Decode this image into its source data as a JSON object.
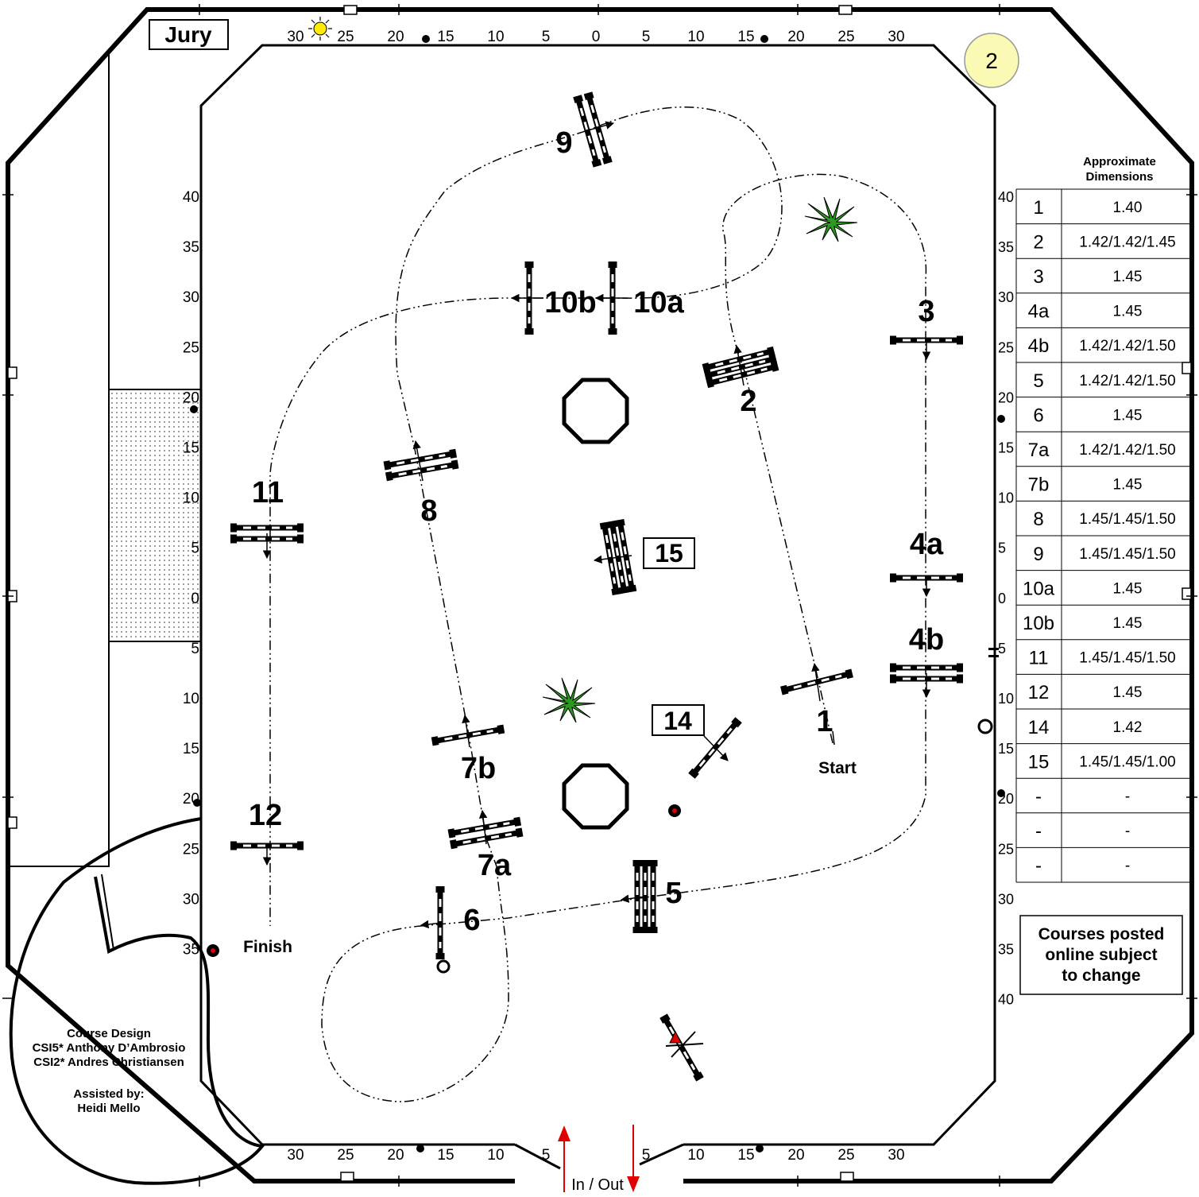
{
  "arena": {
    "round_number": "2",
    "jury_label": "Jury",
    "top_ruler": [
      "30",
      "25",
      "20",
      "15",
      "10",
      "5",
      "0",
      "5",
      "10",
      "15",
      "20",
      "25",
      "30"
    ],
    "bottom_ruler_left": [
      "30",
      "25",
      "20",
      "15",
      "10",
      "5"
    ],
    "bottom_ruler_right": [
      "5",
      "10",
      "15",
      "20",
      "25",
      "30"
    ],
    "left_ruler": [
      "40",
      "35",
      "30",
      "25",
      "20",
      "15",
      "10",
      "5",
      "0",
      "5",
      "10",
      "15",
      "20",
      "25",
      "30",
      "35"
    ],
    "right_ruler": [
      "40",
      "35",
      "30",
      "25",
      "20",
      "15",
      "10",
      "5",
      "0",
      "5",
      "10",
      "15",
      "20",
      "25",
      "30",
      "35",
      "40"
    ],
    "gate_label": "In / Out",
    "start_label": "Start",
    "finish_label": "Finish"
  },
  "credits": {
    "line1": "Course Design",
    "line2": "CSI5* Anthony D’Ambrosio",
    "line3": "CSI2* Andres Christiansen",
    "line4": "Assisted by:",
    "line5": "Heidi Mello"
  },
  "dimensions": {
    "title_line1": "Approximate",
    "title_line2": "Dimensions",
    "rows": [
      {
        "fence": "1",
        "height": "1.40"
      },
      {
        "fence": "2",
        "height": "1.42/1.42/1.45"
      },
      {
        "fence": "3",
        "height": "1.45"
      },
      {
        "fence": "4a",
        "height": "1.45"
      },
      {
        "fence": "4b",
        "height": "1.42/1.42/1.50"
      },
      {
        "fence": "5",
        "height": "1.42/1.42/1.50"
      },
      {
        "fence": "6",
        "height": "1.45"
      },
      {
        "fence": "7a",
        "height": "1.42/1.42/1.50"
      },
      {
        "fence": "7b",
        "height": "1.45"
      },
      {
        "fence": "8",
        "height": "1.45/1.45/1.50"
      },
      {
        "fence": "9",
        "height": "1.45/1.45/1.50"
      },
      {
        "fence": "10a",
        "height": "1.45"
      },
      {
        "fence": "10b",
        "height": "1.45"
      },
      {
        "fence": "11",
        "height": "1.45/1.45/1.50"
      },
      {
        "fence": "12",
        "height": "1.45"
      },
      {
        "fence": "14",
        "height": "1.42"
      },
      {
        "fence": "15",
        "height": "1.45/1.45/1.00"
      },
      {
        "fence": "-",
        "height": "-"
      },
      {
        "fence": "-",
        "height": "-"
      },
      {
        "fence": "-",
        "height": "-"
      }
    ]
  },
  "notice": {
    "line1": "Courses posted",
    "line2": "online subject",
    "line3": "to change"
  },
  "fences": {
    "f1": "1",
    "f2": "2",
    "f3": "3",
    "f4a": "4a",
    "f4b": "4b",
    "f5": "5",
    "f6": "6",
    "f7a": "7a",
    "f7b": "7b",
    "f8": "8",
    "f9": "9",
    "f10a": "10a",
    "f10b": "10b",
    "f11": "11",
    "f12": "12",
    "f14": "14",
    "f15": "15"
  },
  "colors": {
    "sun": "#ffeb00",
    "badge": "#fafab4",
    "plant": "#2c9a1e",
    "arrow_red": "#e00000",
    "dot_red": "#e00000"
  }
}
